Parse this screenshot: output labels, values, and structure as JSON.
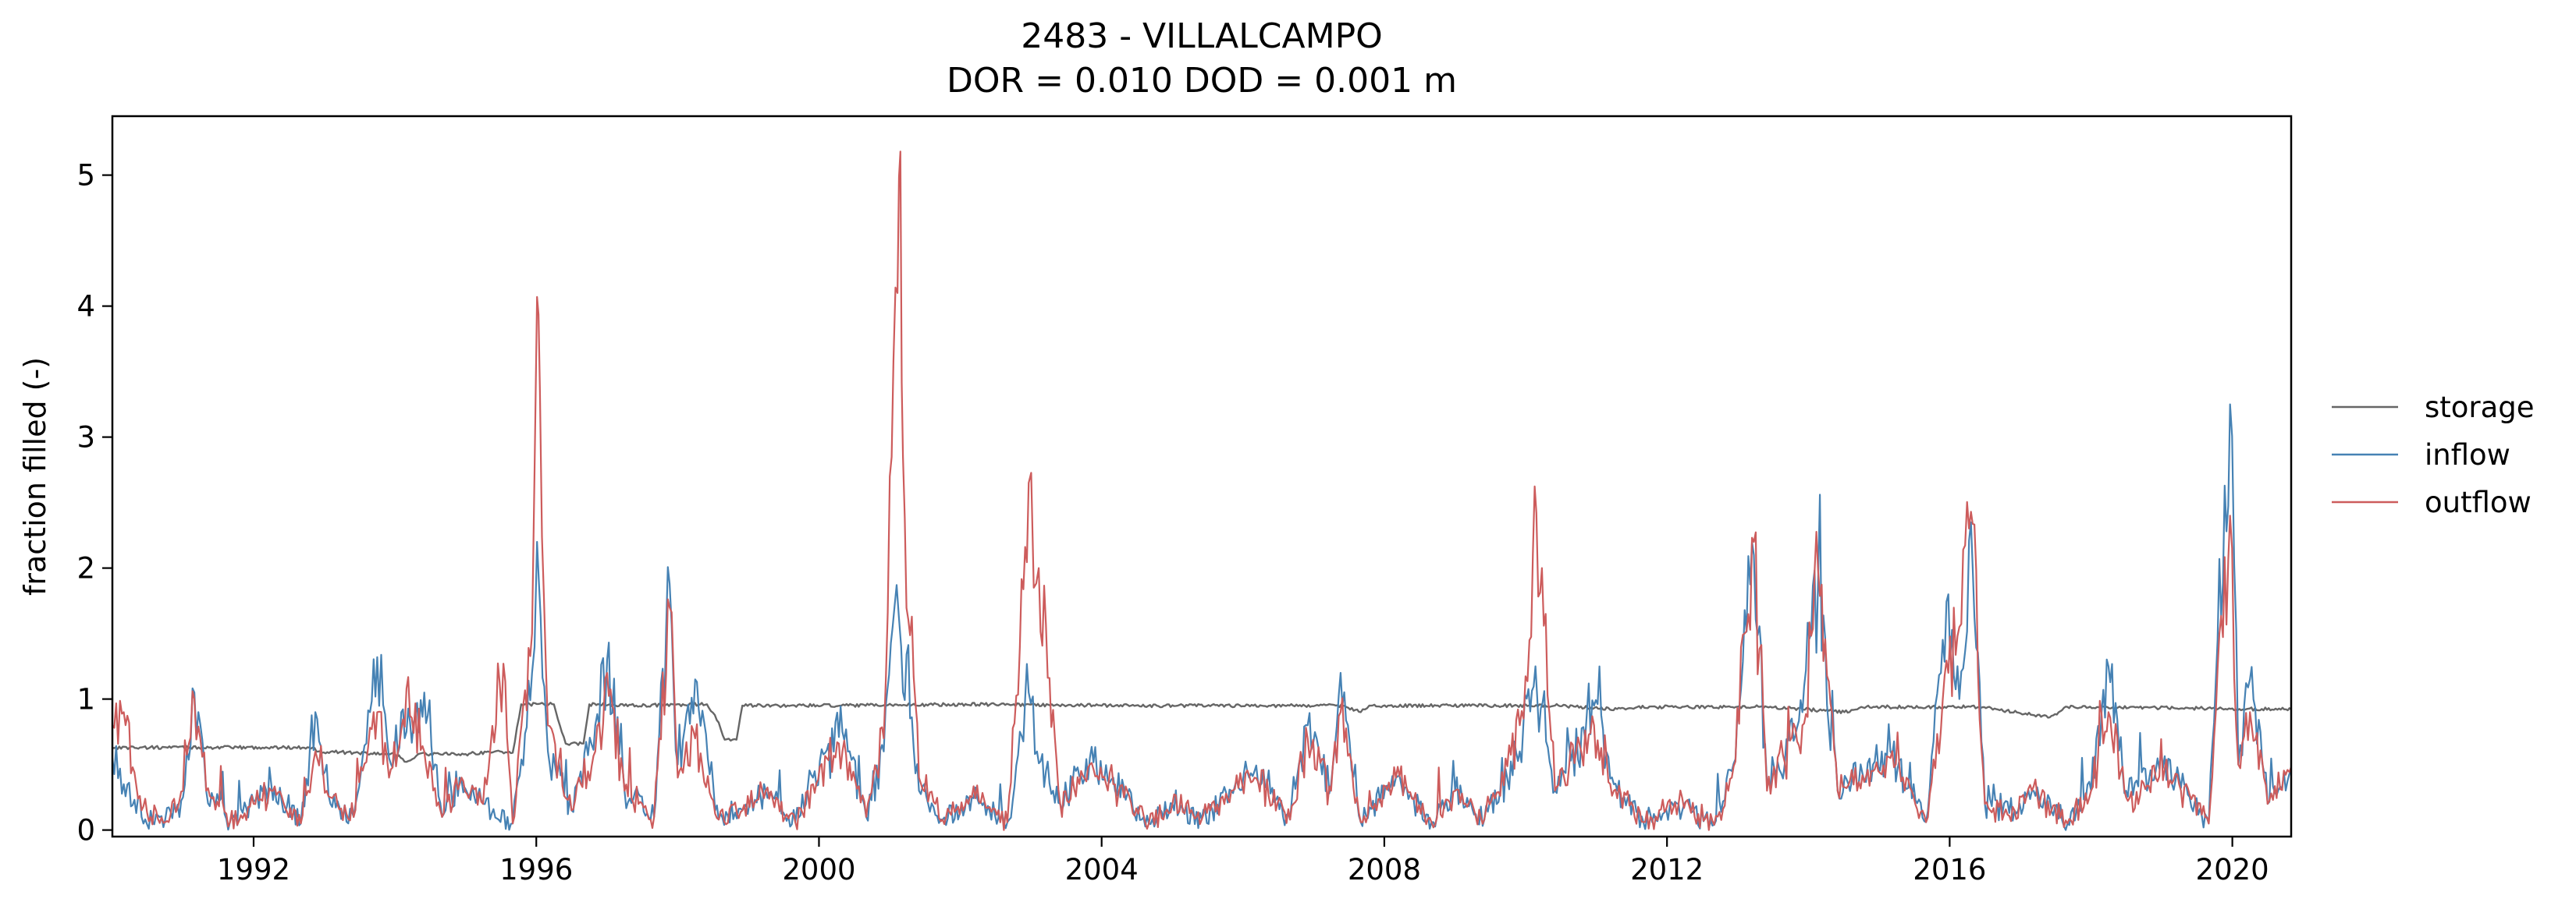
{
  "chart_data": {
    "type": "line",
    "title": "2483 - VILLALCAMPO",
    "subtitle": "DOR = 0.010  DOD = 0.001 m",
    "xlabel": "",
    "ylabel": "fraction filled (-)",
    "xlim": [
      "1990-01-01",
      "2020-10-31"
    ],
    "ylim": [
      -0.05,
      5.45
    ],
    "xticks": [
      {
        "date": "1992-01-01",
        "label": "1992"
      },
      {
        "date": "1996-01-01",
        "label": "1996"
      },
      {
        "date": "2000-01-01",
        "label": "2000"
      },
      {
        "date": "2004-01-01",
        "label": "2004"
      },
      {
        "date": "2008-01-01",
        "label": "2008"
      },
      {
        "date": "2012-01-01",
        "label": "2012"
      },
      {
        "date": "2016-01-01",
        "label": "2016"
      },
      {
        "date": "2020-01-01",
        "label": "2020"
      }
    ],
    "yticks": [
      0,
      1,
      2,
      3,
      4,
      5
    ],
    "grid": false,
    "legend_position": "outside-right",
    "series": [
      {
        "name": "storage",
        "color": "#666666",
        "points": [
          [
            "1990-01-01",
            0.63
          ],
          [
            "1992-11-01",
            0.63
          ],
          [
            "1992-12-01",
            0.6
          ],
          [
            "1993-06-01",
            0.59
          ],
          [
            "1994-01-01",
            0.58
          ],
          [
            "1994-03-01",
            0.52
          ],
          [
            "1994-05-01",
            0.58
          ],
          [
            "1995-01-01",
            0.58
          ],
          [
            "1995-06-01",
            0.6
          ],
          [
            "1995-09-01",
            0.59
          ],
          [
            "1995-10-15",
            0.96
          ],
          [
            "1996-04-01",
            0.96
          ],
          [
            "1996-06-01",
            0.66
          ],
          [
            "1996-09-01",
            0.66
          ],
          [
            "1996-10-01",
            0.96
          ],
          [
            "1997-06-01",
            0.95
          ],
          [
            "1998-06-01",
            0.96
          ],
          [
            "1998-08-01",
            0.82
          ],
          [
            "1998-09-01",
            0.69
          ],
          [
            "1998-11-01",
            0.69
          ],
          [
            "1998-12-01",
            0.95
          ],
          [
            "2000-06-01",
            0.95
          ],
          [
            "2002-01-01",
            0.96
          ],
          [
            "2004-06-01",
            0.95
          ],
          [
            "2007-06-01",
            0.95
          ],
          [
            "2007-09-01",
            0.9
          ],
          [
            "2007-10-15",
            0.95
          ],
          [
            "2010-06-01",
            0.95
          ],
          [
            "2011-06-01",
            0.92
          ],
          [
            "2011-08-01",
            0.94
          ],
          [
            "2013-06-01",
            0.94
          ],
          [
            "2014-08-01",
            0.9
          ],
          [
            "2014-10-01",
            0.94
          ],
          [
            "2016-06-01",
            0.94
          ],
          [
            "2017-06-01",
            0.86
          ],
          [
            "2017-09-01",
            0.94
          ],
          [
            "2019-06-01",
            0.93
          ],
          [
            "2020-10-31",
            0.92
          ]
        ]
      },
      {
        "name": "inflow",
        "color": "#4682b4",
        "points": [
          [
            "1990-01-01",
            0.55
          ],
          [
            "1990-03-01",
            0.35
          ],
          [
            "1990-06-01",
            0.1
          ],
          [
            "1990-10-01",
            0.08
          ],
          [
            "1991-01-01",
            0.25
          ],
          [
            "1991-03-01",
            1.05
          ],
          [
            "1991-05-01",
            0.3
          ],
          [
            "1991-09-01",
            0.06
          ],
          [
            "1992-01-01",
            0.22
          ],
          [
            "1992-04-01",
            0.35
          ],
          [
            "1992-09-01",
            0.05
          ],
          [
            "1992-11-15",
            0.9
          ],
          [
            "1993-02-01",
            0.2
          ],
          [
            "1993-06-01",
            0.1
          ],
          [
            "1993-10-01",
            1.32
          ],
          [
            "1993-12-01",
            0.55
          ],
          [
            "1994-03-01",
            0.75
          ],
          [
            "1994-06-01",
            1.05
          ],
          [
            "1994-09-01",
            0.1
          ],
          [
            "1994-12-01",
            0.4
          ],
          [
            "1995-04-01",
            0.2
          ],
          [
            "1995-09-01",
            0.05
          ],
          [
            "1995-12-10",
            1.2
          ],
          [
            "1996-01-05",
            2.2
          ],
          [
            "1996-03-01",
            0.6
          ],
          [
            "1996-07-01",
            0.15
          ],
          [
            "1996-11-01",
            0.8
          ],
          [
            "1997-01-01",
            1.3
          ],
          [
            "1997-04-01",
            0.3
          ],
          [
            "1997-09-01",
            0.1
          ],
          [
            "1997-11-20",
            1.88
          ],
          [
            "1998-01-01",
            0.5
          ],
          [
            "1998-04-01",
            1.15
          ],
          [
            "1998-08-01",
            0.08
          ],
          [
            "1998-12-01",
            0.15
          ],
          [
            "1999-04-01",
            0.3
          ],
          [
            "1999-09-01",
            0.06
          ],
          [
            "1999-12-01",
            0.4
          ],
          [
            "2000-05-01",
            0.75
          ],
          [
            "2000-09-01",
            0.1
          ],
          [
            "2000-12-01",
            0.6
          ],
          [
            "2001-01-25",
            1.7
          ],
          [
            "2001-03-01",
            1.4
          ],
          [
            "2001-06-01",
            0.3
          ],
          [
            "2001-10-01",
            0.08
          ],
          [
            "2002-03-01",
            0.25
          ],
          [
            "2002-09-01",
            0.06
          ],
          [
            "2002-12-20",
            1.05
          ],
          [
            "2003-02-01",
            0.6
          ],
          [
            "2003-06-01",
            0.2
          ],
          [
            "2003-11-01",
            0.55
          ],
          [
            "2004-03-01",
            0.4
          ],
          [
            "2004-09-01",
            0.05
          ],
          [
            "2005-01-01",
            0.2
          ],
          [
            "2005-06-01",
            0.08
          ],
          [
            "2005-11-01",
            0.3
          ],
          [
            "2006-03-01",
            0.45
          ],
          [
            "2006-09-01",
            0.08
          ],
          [
            "2006-12-01",
            0.8
          ],
          [
            "2007-04-01",
            0.35
          ],
          [
            "2007-05-20",
            1.2
          ],
          [
            "2007-09-01",
            0.06
          ],
          [
            "2008-03-01",
            0.4
          ],
          [
            "2008-09-01",
            0.06
          ],
          [
            "2009-01-01",
            0.3
          ],
          [
            "2009-06-01",
            0.08
          ],
          [
            "2009-12-01",
            0.6
          ],
          [
            "2010-02-20",
            1.25
          ],
          [
            "2010-06-01",
            0.3
          ],
          [
            "2010-12-20",
            0.95
          ],
          [
            "2011-04-01",
            0.35
          ],
          [
            "2011-09-01",
            0.06
          ],
          [
            "2012-03-01",
            0.2
          ],
          [
            "2012-09-01",
            0.04
          ],
          [
            "2012-12-01",
            0.45
          ],
          [
            "2013-03-25",
            2.1
          ],
          [
            "2013-06-01",
            0.35
          ],
          [
            "2013-12-01",
            0.9
          ],
          [
            "2014-02-20",
            1.9
          ],
          [
            "2014-06-01",
            0.3
          ],
          [
            "2014-12-01",
            0.5
          ],
          [
            "2015-03-01",
            0.6
          ],
          [
            "2015-09-01",
            0.06
          ],
          [
            "2015-12-25",
            1.8
          ],
          [
            "2016-02-20",
            1.0
          ],
          [
            "2016-04-20",
            2.35
          ],
          [
            "2016-07-01",
            0.2
          ],
          [
            "2016-12-01",
            0.15
          ],
          [
            "2017-03-01",
            0.3
          ],
          [
            "2017-09-01",
            0.05
          ],
          [
            "2018-01-01",
            0.3
          ],
          [
            "2018-04-01",
            1.25
          ],
          [
            "2018-07-01",
            0.3
          ],
          [
            "2018-12-01",
            0.45
          ],
          [
            "2019-04-01",
            0.4
          ],
          [
            "2019-09-01",
            0.05
          ],
          [
            "2019-12-20",
            3.25
          ],
          [
            "2020-02-01",
            0.5
          ],
          [
            "2020-04-01",
            1.15
          ],
          [
            "2020-07-01",
            0.2
          ],
          [
            "2020-10-31",
            0.45
          ]
        ]
      },
      {
        "name": "outflow",
        "color": "#cd5c5c",
        "points": [
          [
            "1990-01-01",
            0.8
          ],
          [
            "1990-03-01",
            0.9
          ],
          [
            "1990-06-01",
            0.15
          ],
          [
            "1990-10-01",
            0.06
          ],
          [
            "1991-01-01",
            0.3
          ],
          [
            "1991-03-01",
            1.0
          ],
          [
            "1991-05-01",
            0.3
          ],
          [
            "1991-09-01",
            0.06
          ],
          [
            "1992-01-01",
            0.2
          ],
          [
            "1992-04-01",
            0.3
          ],
          [
            "1992-09-01",
            0.05
          ],
          [
            "1992-11-15",
            0.6
          ],
          [
            "1993-02-01",
            0.25
          ],
          [
            "1993-06-01",
            0.1
          ],
          [
            "1993-10-01",
            0.9
          ],
          [
            "1993-12-01",
            0.4
          ],
          [
            "1994-03-01",
            1.08
          ],
          [
            "1994-06-01",
            0.6
          ],
          [
            "1994-09-01",
            0.1
          ],
          [
            "1994-12-01",
            0.35
          ],
          [
            "1995-04-01",
            0.2
          ],
          [
            "1995-07-15",
            1.27
          ],
          [
            "1995-09-01",
            0.05
          ],
          [
            "1995-12-10",
            1.5
          ],
          [
            "1996-01-05",
            4.07
          ],
          [
            "1996-01-20",
            3.35
          ],
          [
            "1996-03-01",
            0.8
          ],
          [
            "1996-07-01",
            0.15
          ],
          [
            "1996-11-01",
            0.6
          ],
          [
            "1997-01-01",
            1.2
          ],
          [
            "1997-04-01",
            0.3
          ],
          [
            "1997-09-01",
            0.1
          ],
          [
            "1997-11-20",
            1.7
          ],
          [
            "1998-01-01",
            0.4
          ],
          [
            "1998-04-01",
            0.7
          ],
          [
            "1998-08-01",
            0.08
          ],
          [
            "1998-12-01",
            0.15
          ],
          [
            "1999-04-01",
            0.3
          ],
          [
            "1999-09-01",
            0.06
          ],
          [
            "1999-12-01",
            0.35
          ],
          [
            "2000-05-01",
            0.6
          ],
          [
            "2000-09-01",
            0.1
          ],
          [
            "2000-12-01",
            0.7
          ],
          [
            "2001-01-01",
            2.7
          ],
          [
            "2001-01-20",
            3.58
          ],
          [
            "2001-02-10",
            4.1
          ],
          [
            "2001-02-25",
            5.18
          ],
          [
            "2001-03-10",
            2.85
          ],
          [
            "2001-06-01",
            0.4
          ],
          [
            "2001-10-01",
            0.08
          ],
          [
            "2002-03-01",
            0.25
          ],
          [
            "2002-09-01",
            0.06
          ],
          [
            "2002-12-20",
            2.65
          ],
          [
            "2003-01-15",
            1.85
          ],
          [
            "2003-02-10",
            2.0
          ],
          [
            "2003-06-01",
            0.2
          ],
          [
            "2003-11-01",
            0.5
          ],
          [
            "2004-03-01",
            0.35
          ],
          [
            "2004-09-01",
            0.05
          ],
          [
            "2005-01-01",
            0.2
          ],
          [
            "2005-06-01",
            0.08
          ],
          [
            "2005-11-01",
            0.3
          ],
          [
            "2006-03-01",
            0.4
          ],
          [
            "2006-09-01",
            0.08
          ],
          [
            "2006-12-01",
            0.7
          ],
          [
            "2007-04-01",
            0.3
          ],
          [
            "2007-05-20",
            0.9
          ],
          [
            "2007-09-01",
            0.06
          ],
          [
            "2008-03-01",
            0.4
          ],
          [
            "2008-09-01",
            0.06
          ],
          [
            "2009-01-01",
            0.3
          ],
          [
            "2009-06-01",
            0.08
          ],
          [
            "2009-12-01",
            0.8
          ],
          [
            "2010-01-20",
            1.45
          ],
          [
            "2010-02-25",
            2.42
          ],
          [
            "2010-06-01",
            0.3
          ],
          [
            "2010-12-20",
            0.8
          ],
          [
            "2011-04-01",
            0.3
          ],
          [
            "2011-09-01",
            0.06
          ],
          [
            "2012-03-01",
            0.2
          ],
          [
            "2012-09-01",
            0.04
          ],
          [
            "2012-12-01",
            0.4
          ],
          [
            "2013-03-25",
            2.2
          ],
          [
            "2013-06-01",
            0.3
          ],
          [
            "2013-12-01",
            0.8
          ],
          [
            "2014-02-20",
            1.98
          ],
          [
            "2014-06-01",
            0.3
          ],
          [
            "2014-12-01",
            0.45
          ],
          [
            "2015-03-01",
            0.55
          ],
          [
            "2015-09-01",
            0.06
          ],
          [
            "2015-12-25",
            1.2
          ],
          [
            "2016-02-20",
            1.55
          ],
          [
            "2016-04-20",
            2.43
          ],
          [
            "2016-07-01",
            0.2
          ],
          [
            "2016-12-01",
            0.15
          ],
          [
            "2017-03-01",
            0.3
          ],
          [
            "2017-09-01",
            0.05
          ],
          [
            "2018-01-01",
            0.3
          ],
          [
            "2018-04-01",
            0.9
          ],
          [
            "2018-07-01",
            0.25
          ],
          [
            "2018-12-01",
            0.4
          ],
          [
            "2019-04-01",
            0.35
          ],
          [
            "2019-09-01",
            0.05
          ],
          [
            "2019-12-20",
            2.4
          ],
          [
            "2020-02-01",
            0.5
          ],
          [
            "2020-04-01",
            0.9
          ],
          [
            "2020-07-01",
            0.2
          ],
          [
            "2020-10-31",
            0.48
          ]
        ]
      }
    ]
  }
}
